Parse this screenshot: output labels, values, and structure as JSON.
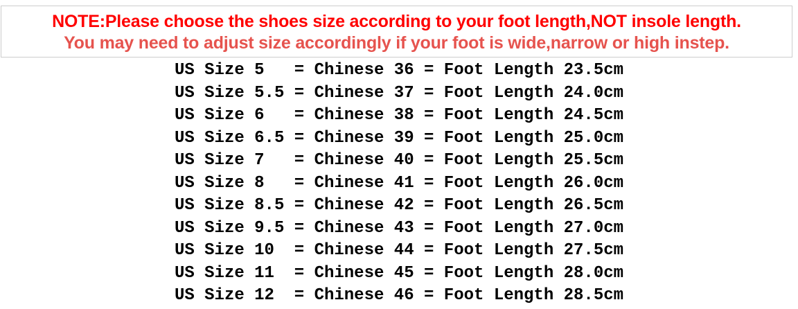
{
  "banner": {
    "line1": "NOTE:Please choose the shoes size according to your foot length,NOT insole length.",
    "line2": "You may need to adjust size accordingly if your foot is wide,narrow or high instep."
  },
  "colors": {
    "primary_note_red": "#ff0000",
    "secondary_note_red": "#e6534e",
    "banner_border_gray": "#cccccc",
    "table_text_black": "#000000"
  },
  "size_table": {
    "labels": {
      "us": "US Size",
      "chinese": "Chinese",
      "foot_length": "Foot Length",
      "unit": "cm",
      "equals": "="
    },
    "rows": [
      {
        "us": "5",
        "chinese": "36",
        "foot_length_cm": "23.5"
      },
      {
        "us": "5.5",
        "chinese": "37",
        "foot_length_cm": "24.0"
      },
      {
        "us": "6",
        "chinese": "38",
        "foot_length_cm": "24.5"
      },
      {
        "us": "6.5",
        "chinese": "39",
        "foot_length_cm": "25.0"
      },
      {
        "us": "7",
        "chinese": "40",
        "foot_length_cm": "25.5"
      },
      {
        "us": "8",
        "chinese": "41",
        "foot_length_cm": "26.0"
      },
      {
        "us": "8.5",
        "chinese": "42",
        "foot_length_cm": "26.5"
      },
      {
        "us": "9.5",
        "chinese": "43",
        "foot_length_cm": "27.0"
      },
      {
        "us": "10",
        "chinese": "44",
        "foot_length_cm": "27.5"
      },
      {
        "us": "11",
        "chinese": "45",
        "foot_length_cm": "28.0"
      },
      {
        "us": "12",
        "chinese": "46",
        "foot_length_cm": "28.5"
      }
    ]
  }
}
